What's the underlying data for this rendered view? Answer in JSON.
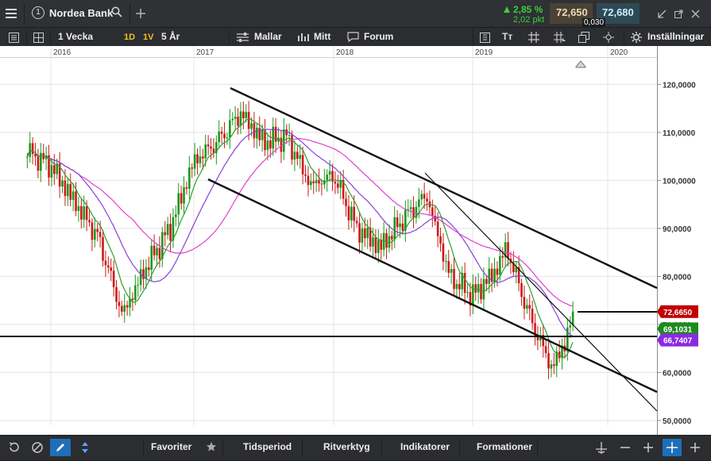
{
  "header": {
    "tab_number": "1",
    "instrument": "Nordea Bank",
    "change_pct": "2,85 %",
    "change_pts": "2,02 pkt",
    "bid": "72,650",
    "ask": "72,680",
    "spread": "0,030"
  },
  "toolbar": {
    "period": "1 Vecka",
    "timeframes": [
      "1D",
      "1V"
    ],
    "range": "5 År",
    "templates": "Mallar",
    "mine": "Mitt",
    "forum": "Forum",
    "text_tool": "Tт",
    "settings": "Inställningar"
  },
  "bottom": {
    "favorites": "Favoriter",
    "period": "Tidsperiod",
    "draw": "Ritverktyg",
    "indicators": "Indikatorer",
    "patterns": "Formationer"
  },
  "colors": {
    "up": "#1a9a1a",
    "down": "#d01818",
    "ma_fast": "#2e9e2e",
    "ma_mid": "#8a3fd8",
    "ma_slow": "#e040d0",
    "price_badge": "#c00000",
    "ma_fast_badge": "#1d8a1d",
    "ma_mid_badge": "#8a2be2"
  },
  "chart_data": {
    "type": "candlestick",
    "x_ticks": [
      "2016",
      "2017",
      "2018",
      "2019",
      "2020"
    ],
    "y_ticks": [
      "120,0000",
      "110,0000",
      "100,0000",
      "90,0000",
      "80,0000",
      "70,0000",
      "60,0000",
      "50,0000"
    ],
    "ylim": [
      49,
      126
    ],
    "grid": true,
    "last_price": "72,6650",
    "ma_fast_value": "69,1031",
    "ma_mid_value": "66,7407",
    "key_points": [
      {
        "date": "2015-11",
        "price": 106
      },
      {
        "date": "2016-01",
        "price": 103
      },
      {
        "date": "2016-05",
        "price": 88
      },
      {
        "date": "2016-07",
        "price": 72
      },
      {
        "date": "2016-09",
        "price": 82
      },
      {
        "date": "2016-11",
        "price": 90
      },
      {
        "date": "2017-01",
        "price": 104
      },
      {
        "date": "2017-03",
        "price": 108
      },
      {
        "date": "2017-05",
        "price": 114
      },
      {
        "date": "2017-07",
        "price": 108
      },
      {
        "date": "2017-09",
        "price": 109
      },
      {
        "date": "2017-11",
        "price": 99
      },
      {
        "date": "2018-01",
        "price": 101
      },
      {
        "date": "2018-03",
        "price": 90
      },
      {
        "date": "2018-05",
        "price": 86
      },
      {
        "date": "2018-07",
        "price": 92
      },
      {
        "date": "2018-09",
        "price": 97
      },
      {
        "date": "2018-11",
        "price": 80
      },
      {
        "date": "2019-01",
        "price": 76
      },
      {
        "date": "2019-03",
        "price": 81
      },
      {
        "date": "2019-04",
        "price": 86
      },
      {
        "date": "2019-06",
        "price": 72
      },
      {
        "date": "2019-08",
        "price": 61
      },
      {
        "date": "2019-09",
        "price": 65
      },
      {
        "date": "2019-10",
        "price": 72.7
      }
    ]
  }
}
